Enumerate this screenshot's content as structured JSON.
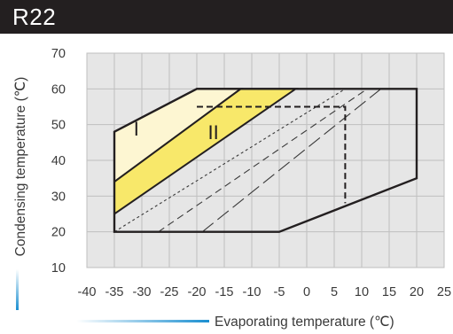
{
  "header": {
    "title": "R22"
  },
  "colors": {
    "header_bg": "#231f20",
    "plot_bg": "#e6e6e6",
    "grid": "#bfbfbf",
    "region_I": "#fdf6d2",
    "region_II": "#f8e86a",
    "outline": "#231f20",
    "axis_accent": "#1b8fd1"
  },
  "chart_data": {
    "type": "area",
    "title": "R22",
    "xlabel": "Evaporating temperature (℃)",
    "ylabel": "Condensing temperature (℃)",
    "xlim": [
      -40,
      25
    ],
    "ylim": [
      10,
      70
    ],
    "x_ticks": [
      -40,
      -35,
      -30,
      -25,
      -20,
      -15,
      -10,
      -5,
      0,
      5,
      10,
      15,
      20,
      25
    ],
    "y_ticks": [
      10,
      20,
      30,
      40,
      50,
      60,
      70
    ],
    "x_tick_labels": [
      "-40",
      "-35",
      "-30",
      "-25",
      "-20",
      "-15",
      "-10",
      "-5",
      "0",
      "5",
      "10",
      "15",
      "20",
      "25"
    ],
    "y_tick_labels": [
      "10",
      "20",
      "30",
      "40",
      "50",
      "60",
      "70"
    ],
    "grid": true,
    "envelope": [
      [
        -35,
        20
      ],
      [
        -5,
        20
      ],
      [
        20,
        35
      ],
      [
        20,
        60
      ],
      [
        -20,
        60
      ],
      [
        -35,
        48
      ]
    ],
    "regions": [
      {
        "label": "I",
        "label_pos": [
          -31,
          47
        ],
        "polygon": [
          [
            -35,
            34
          ],
          [
            -35,
            48
          ],
          [
            -20,
            60
          ],
          [
            -12,
            60
          ]
        ]
      },
      {
        "label": "II",
        "label_pos": [
          -17,
          46
        ],
        "polygon": [
          [
            -35,
            25
          ],
          [
            -35,
            34
          ],
          [
            -12,
            60
          ],
          [
            -2,
            60
          ]
        ]
      }
    ],
    "heavy_dashed": [
      [
        -20,
        55
      ],
      [
        6,
        55
      ],
      [
        7,
        55
      ],
      [
        7,
        28
      ]
    ],
    "light_dashed": [
      [
        [
          -35,
          20
        ],
        [
          7,
          60
        ]
      ],
      [
        [
          -27,
          20
        ],
        [
          11,
          60
        ]
      ],
      [
        [
          -19,
          20
        ],
        [
          13.5,
          60
        ]
      ]
    ]
  }
}
